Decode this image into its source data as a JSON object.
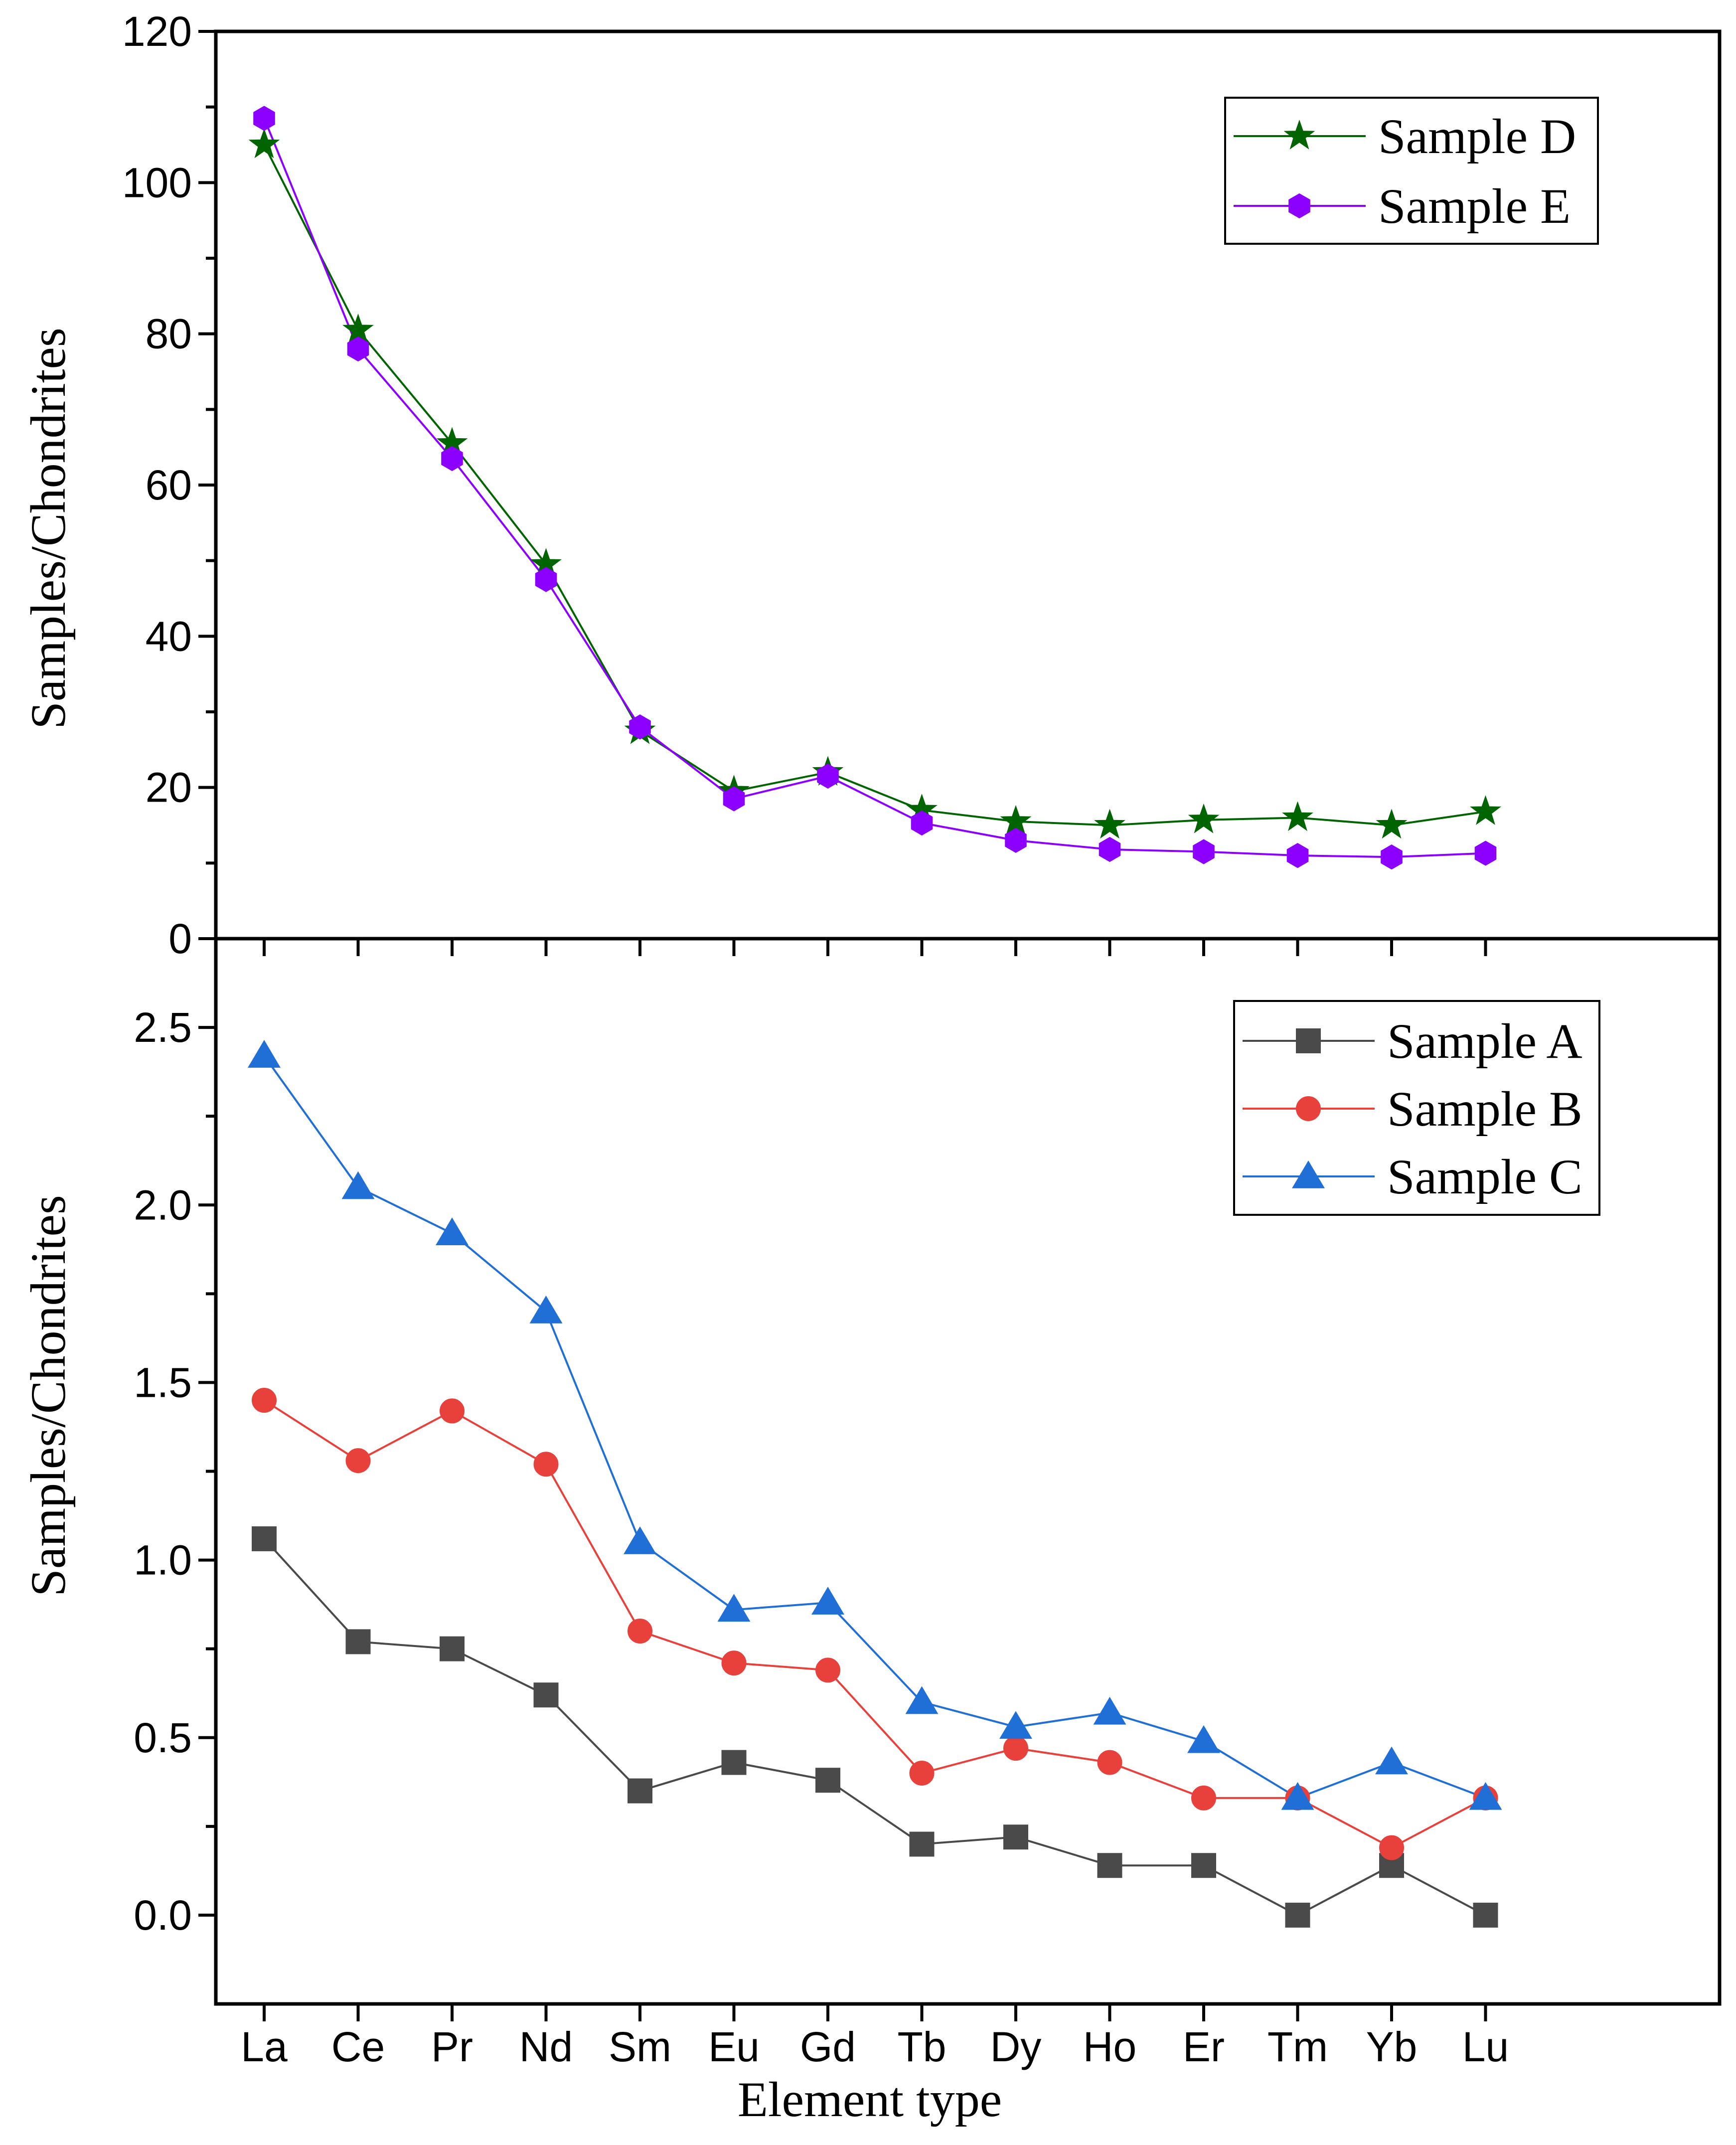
{
  "chart_data": [
    {
      "type": "line",
      "categories": [
        "La",
        "Ce",
        "Pr",
        "Nd",
        "Sm",
        "Eu",
        "Gd",
        "Tb",
        "Dy",
        "Ho",
        "Er",
        "Tm",
        "Yb",
        "Lu"
      ],
      "ylabel": "Samples/Chondrites",
      "ylim": [
        0,
        120
      ],
      "yticks": [
        0,
        20,
        40,
        60,
        80,
        100,
        120
      ],
      "yticklabels": [
        "0",
        "20",
        "40",
        "60",
        "80",
        "100",
        "120"
      ],
      "legend_position": "top-right",
      "series": [
        {
          "name": "Sample D",
          "marker": "star",
          "color": "#006400",
          "values": [
            105,
            80.5,
            65.5,
            49.5,
            27.5,
            19.5,
            22,
            17,
            15.5,
            15,
            15.7,
            16,
            15,
            16.8
          ]
        },
        {
          "name": "Sample E",
          "marker": "hexagon",
          "color": "#8B00FF",
          "values": [
            108.5,
            78,
            63.5,
            47.5,
            28,
            18.5,
            21.5,
            15.3,
            13,
            11.8,
            11.5,
            11,
            10.8,
            11.3
          ]
        }
      ]
    },
    {
      "type": "line",
      "categories": [
        "La",
        "Ce",
        "Pr",
        "Nd",
        "Sm",
        "Eu",
        "Gd",
        "Tb",
        "Dy",
        "Ho",
        "Er",
        "Tm",
        "Yb",
        "Lu"
      ],
      "xlabel": "Element type",
      "ylabel": "Samples/Chondrites",
      "ylim": [
        -0.25,
        2.75
      ],
      "yticks": [
        0,
        0.5,
        1.0,
        1.5,
        2.0,
        2.5
      ],
      "yticklabels": [
        "0.0",
        "0.5",
        "1.0",
        "1.5",
        "2.0",
        "2.5"
      ],
      "legend_position": "top-right",
      "series": [
        {
          "name": "Sample A",
          "marker": "square",
          "color": "#4a4a4a",
          "values": [
            1.06,
            0.77,
            0.75,
            0.62,
            0.35,
            0.43,
            0.38,
            0.2,
            0.22,
            0.14,
            0.14,
            0.0,
            0.14,
            0.0
          ]
        },
        {
          "name": "Sample B",
          "marker": "circle",
          "color": "#e8413c",
          "values": [
            1.45,
            1.28,
            1.42,
            1.27,
            0.8,
            0.71,
            0.69,
            0.4,
            0.47,
            0.43,
            0.33,
            0.33,
            0.19,
            0.33
          ]
        },
        {
          "name": "Sample C",
          "marker": "triangle",
          "color": "#1f6fd6",
          "values": [
            2.42,
            2.05,
            1.92,
            1.7,
            1.05,
            0.86,
            0.88,
            0.6,
            0.53,
            0.57,
            0.49,
            0.33,
            0.43,
            0.33
          ]
        }
      ]
    }
  ]
}
